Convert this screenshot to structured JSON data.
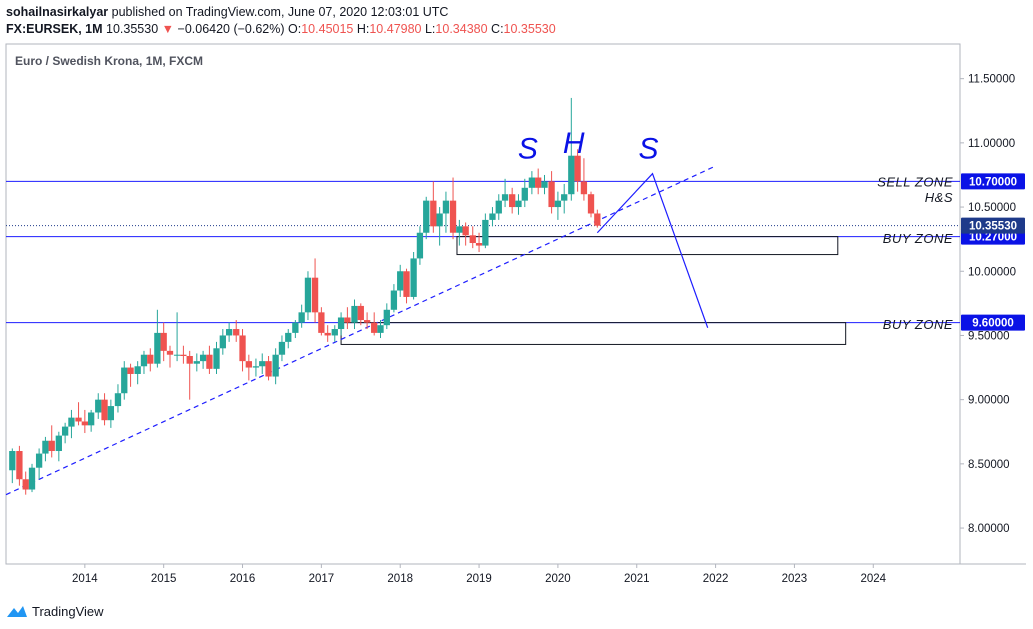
{
  "header": {
    "author": "sohailnasirkalyar",
    "published": " published on TradingView.com, June 07, 2020 12:03:01 UTC",
    "symbol": "FX:EURSEK, 1M",
    "last": "10.35530",
    "change": "−0.06420 (−0.62%)",
    "o_label": "O:",
    "o_value": "10.45015",
    "h_label": "H:",
    "h_value": "10.47980",
    "l_label": "L:",
    "l_value": "10.34380",
    "c_label": "C:",
    "c_value": "10.35530"
  },
  "footer": {
    "brand": "TradingView"
  },
  "colors": {
    "up": "#26a69a",
    "down": "#ef5350",
    "line": "#1e1eff",
    "badge": "#0a12e6",
    "price_badge": "#1e3a8a",
    "text": "#131722",
    "grid": "#e0e3eb"
  },
  "chart_data": {
    "type": "candlestick",
    "title": "Euro / Swedish Krona, 1M, FXCM",
    "y_ticks": [
      "8.00000",
      "8.50000",
      "9.00000",
      "9.50000",
      "10.00000",
      "10.50000",
      "11.00000",
      "11.50000"
    ],
    "x_ticks": [
      "2014",
      "2015",
      "2016",
      "2017",
      "2018",
      "2019",
      "2020",
      "2021",
      "2022",
      "2023",
      "2024"
    ],
    "ylim": [
      7.72,
      11.77
    ],
    "xlim": [
      2013.0,
      2025.1
    ],
    "current_price": "10.35530",
    "levels": [
      {
        "value": 10.7,
        "label": "10.70000"
      },
      {
        "value": 10.27,
        "label": "10.27000"
      },
      {
        "value": 9.6,
        "label": "9.60000"
      }
    ],
    "annotations": [
      {
        "text": "SELL ZONE",
        "x": 2023.7,
        "y": 10.66
      },
      {
        "text": "H&S",
        "x": 2023.7,
        "y": 10.54
      },
      {
        "text": "BUY ZONE",
        "x": 2023.7,
        "y": 10.22
      },
      {
        "text": "BUY ZONE",
        "x": 2023.7,
        "y": 9.55
      }
    ],
    "pattern_labels": [
      {
        "text": "S",
        "x": 2019.62,
        "y": 10.88
      },
      {
        "text": "H",
        "x": 2020.2,
        "y": 10.92
      },
      {
        "text": "S",
        "x": 2021.15,
        "y": 10.88
      }
    ],
    "boxes": [
      {
        "x1": 2018.72,
        "x2": 2023.55,
        "y1": 10.27,
        "y2": 10.13
      },
      {
        "x1": 2017.25,
        "x2": 2023.65,
        "y1": 9.6,
        "y2": 9.43
      }
    ],
    "trendline": {
      "x1": 2013.0,
      "y1": 8.26,
      "x2": 2022.0,
      "y2": 10.82
    },
    "projection": [
      [
        2020.5,
        10.3
      ],
      [
        2021.2,
        10.76
      ],
      [
        2021.9,
        9.56
      ]
    ],
    "candles": [
      [
        2013.08,
        8.45,
        8.62,
        8.35,
        8.6
      ],
      [
        2013.17,
        8.6,
        8.64,
        8.33,
        8.38
      ],
      [
        2013.25,
        8.38,
        8.44,
        8.26,
        8.3
      ],
      [
        2013.33,
        8.3,
        8.5,
        8.28,
        8.47
      ],
      [
        2013.42,
        8.47,
        8.62,
        8.38,
        8.58
      ],
      [
        2013.5,
        8.58,
        8.71,
        8.52,
        8.68
      ],
      [
        2013.58,
        8.68,
        8.8,
        8.55,
        8.6
      ],
      [
        2013.67,
        8.6,
        8.75,
        8.52,
        8.72
      ],
      [
        2013.75,
        8.72,
        8.82,
        8.66,
        8.79
      ],
      [
        2013.83,
        8.79,
        8.92,
        8.7,
        8.86
      ],
      [
        2013.92,
        8.86,
        8.98,
        8.8,
        8.83
      ],
      [
        2014.0,
        8.83,
        8.92,
        8.74,
        8.8
      ],
      [
        2014.08,
        8.8,
        8.92,
        8.75,
        8.9
      ],
      [
        2014.17,
        8.9,
        9.05,
        8.85,
        9.0
      ],
      [
        2014.25,
        9.0,
        9.05,
        8.8,
        8.84
      ],
      [
        2014.33,
        8.84,
        9.0,
        8.78,
        8.95
      ],
      [
        2014.42,
        8.95,
        9.12,
        8.9,
        9.05
      ],
      [
        2014.5,
        9.05,
        9.3,
        9.0,
        9.25
      ],
      [
        2014.58,
        9.25,
        9.28,
        9.1,
        9.2
      ],
      [
        2014.67,
        9.2,
        9.3,
        9.12,
        9.26
      ],
      [
        2014.75,
        9.26,
        9.38,
        9.2,
        9.35
      ],
      [
        2014.83,
        9.35,
        9.4,
        9.22,
        9.28
      ],
      [
        2014.92,
        9.28,
        9.7,
        9.25,
        9.52
      ],
      [
        2015.0,
        9.52,
        9.6,
        9.3,
        9.38
      ],
      [
        2015.08,
        9.38,
        9.42,
        9.25,
        9.35
      ],
      [
        2015.17,
        9.35,
        9.68,
        9.3,
        9.35
      ],
      [
        2015.25,
        9.35,
        9.42,
        9.28,
        9.34
      ],
      [
        2015.33,
        9.34,
        9.38,
        9.0,
        9.28
      ],
      [
        2015.42,
        9.28,
        9.36,
        9.22,
        9.3
      ],
      [
        2015.5,
        9.3,
        9.38,
        9.24,
        9.35
      ],
      [
        2015.58,
        9.35,
        9.42,
        9.2,
        9.24
      ],
      [
        2015.67,
        9.24,
        9.45,
        9.2,
        9.4
      ],
      [
        2015.75,
        9.4,
        9.55,
        9.35,
        9.5
      ],
      [
        2015.83,
        9.5,
        9.6,
        9.45,
        9.55
      ],
      [
        2015.92,
        9.55,
        9.62,
        9.45,
        9.5
      ],
      [
        2016.0,
        9.5,
        9.55,
        9.22,
        9.3
      ],
      [
        2016.08,
        9.3,
        9.35,
        9.15,
        9.25
      ],
      [
        2016.17,
        9.25,
        9.32,
        9.18,
        9.26
      ],
      [
        2016.25,
        9.26,
        9.36,
        9.2,
        9.3
      ],
      [
        2016.33,
        9.3,
        9.34,
        9.15,
        9.18
      ],
      [
        2016.42,
        9.18,
        9.4,
        9.12,
        9.35
      ],
      [
        2016.5,
        9.35,
        9.5,
        9.3,
        9.45
      ],
      [
        2016.58,
        9.45,
        9.55,
        9.4,
        9.52
      ],
      [
        2016.67,
        9.52,
        9.62,
        9.48,
        9.6
      ],
      [
        2016.75,
        9.6,
        9.74,
        9.56,
        9.68
      ],
      [
        2016.83,
        9.68,
        10.0,
        9.62,
        9.95
      ],
      [
        2016.92,
        9.95,
        10.1,
        9.6,
        9.68
      ],
      [
        2017.0,
        9.68,
        9.72,
        9.5,
        9.52
      ],
      [
        2017.08,
        9.52,
        9.58,
        9.45,
        9.5
      ],
      [
        2017.17,
        9.5,
        9.58,
        9.45,
        9.55
      ],
      [
        2017.25,
        9.55,
        9.68,
        9.5,
        9.64
      ],
      [
        2017.33,
        9.64,
        9.72,
        9.55,
        9.6
      ],
      [
        2017.42,
        9.6,
        9.78,
        9.55,
        9.73
      ],
      [
        2017.5,
        9.73,
        9.75,
        9.58,
        9.62
      ],
      [
        2017.58,
        9.62,
        9.68,
        9.55,
        9.6
      ],
      [
        2017.67,
        9.6,
        9.68,
        9.5,
        9.52
      ],
      [
        2017.75,
        9.52,
        9.62,
        9.48,
        9.58
      ],
      [
        2017.83,
        9.58,
        9.75,
        9.55,
        9.7
      ],
      [
        2017.92,
        9.7,
        9.9,
        9.68,
        9.85
      ],
      [
        2018.0,
        9.85,
        10.05,
        9.8,
        10.0
      ],
      [
        2018.08,
        10.0,
        10.02,
        9.75,
        9.8
      ],
      [
        2018.17,
        9.8,
        10.15,
        9.78,
        10.1
      ],
      [
        2018.25,
        10.1,
        10.35,
        10.05,
        10.3
      ],
      [
        2018.33,
        10.3,
        10.58,
        10.25,
        10.55
      ],
      [
        2018.42,
        10.55,
        10.7,
        10.3,
        10.35
      ],
      [
        2018.5,
        10.35,
        10.5,
        10.2,
        10.45
      ],
      [
        2018.58,
        10.45,
        10.62,
        10.3,
        10.55
      ],
      [
        2018.67,
        10.55,
        10.73,
        10.25,
        10.3
      ],
      [
        2018.75,
        10.3,
        10.4,
        10.2,
        10.35
      ],
      [
        2018.83,
        10.35,
        10.38,
        10.2,
        10.28
      ],
      [
        2018.92,
        10.28,
        10.35,
        10.18,
        10.22
      ],
      [
        2019.0,
        10.22,
        10.3,
        10.15,
        10.2
      ],
      [
        2019.08,
        10.2,
        10.45,
        10.18,
        10.4
      ],
      [
        2019.17,
        10.4,
        10.5,
        10.35,
        10.45
      ],
      [
        2019.25,
        10.45,
        10.6,
        10.4,
        10.55
      ],
      [
        2019.33,
        10.55,
        10.72,
        10.5,
        10.6
      ],
      [
        2019.42,
        10.6,
        10.65,
        10.45,
        10.5
      ],
      [
        2019.5,
        10.5,
        10.6,
        10.44,
        10.55
      ],
      [
        2019.58,
        10.55,
        10.72,
        10.5,
        10.65
      ],
      [
        2019.67,
        10.65,
        10.78,
        10.6,
        10.73
      ],
      [
        2019.75,
        10.73,
        10.8,
        10.6,
        10.65
      ],
      [
        2019.83,
        10.65,
        10.75,
        10.6,
        10.7
      ],
      [
        2019.92,
        10.7,
        10.78,
        10.45,
        10.5
      ],
      [
        2020.0,
        10.5,
        10.62,
        10.4,
        10.55
      ],
      [
        2020.08,
        10.55,
        10.68,
        10.45,
        10.6
      ],
      [
        2020.17,
        10.6,
        11.35,
        10.55,
        10.9
      ],
      [
        2020.25,
        10.9,
        10.95,
        10.62,
        10.7
      ],
      [
        2020.33,
        10.7,
        10.88,
        10.55,
        10.6
      ],
      [
        2020.42,
        10.6,
        10.62,
        10.42,
        10.45
      ],
      [
        2020.5,
        10.45,
        10.48,
        10.34,
        10.355
      ]
    ]
  }
}
